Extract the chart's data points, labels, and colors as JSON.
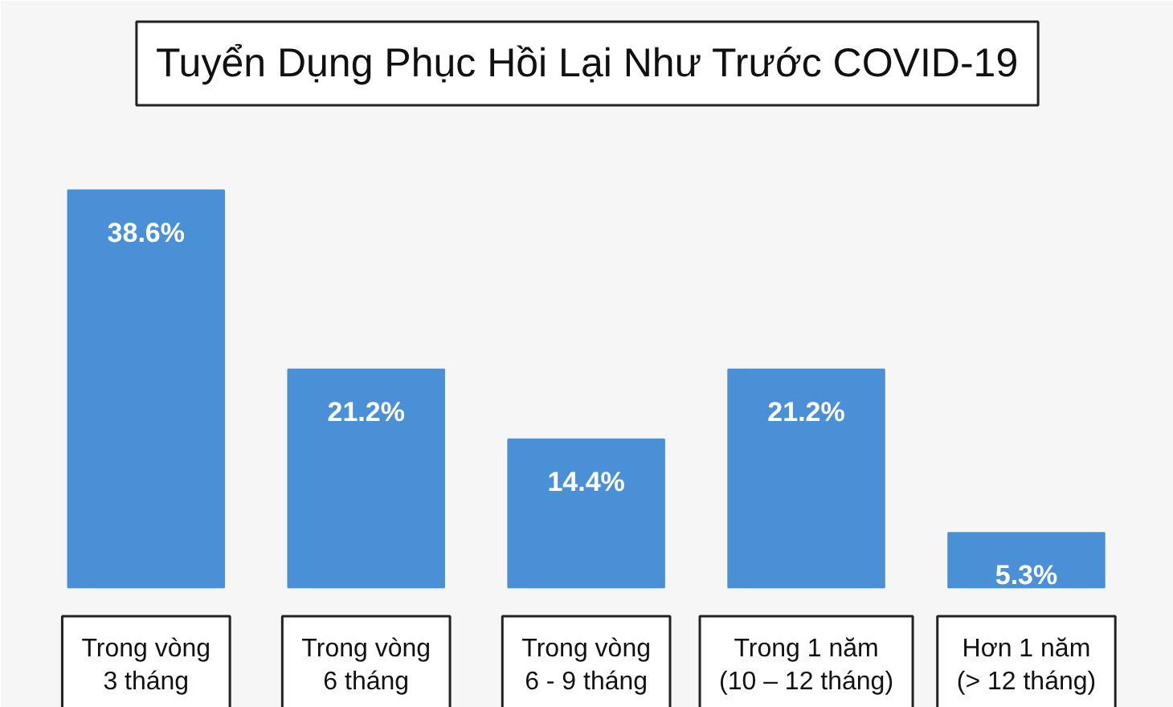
{
  "chart_data": {
    "type": "bar",
    "title": "Tuyển Dụng Phục Hồi Lại Như Trước COVID-19",
    "categories": [
      "Trong vòng\n3 tháng",
      "Trong vòng\n6 tháng",
      "Trong vòng\n6 - 9 tháng",
      "Trong 1 năm\n(10 – 12 tháng)",
      "Hơn 1 năm\n(> 12 tháng)"
    ],
    "values": [
      38.6,
      21.2,
      14.4,
      21.2,
      5.3
    ],
    "value_labels": [
      "38.6%",
      "21.2%",
      "14.4%",
      "21.2%",
      "5.3%"
    ],
    "color": "#4a90d6"
  }
}
